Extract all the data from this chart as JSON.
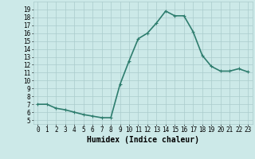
{
  "x": [
    0,
    1,
    2,
    3,
    4,
    5,
    6,
    7,
    8,
    9,
    10,
    11,
    12,
    13,
    14,
    15,
    16,
    17,
    18,
    19,
    20,
    21,
    22,
    23
  ],
  "y": [
    7.0,
    7.0,
    6.5,
    6.3,
    6.0,
    5.7,
    5.5,
    5.3,
    5.3,
    9.5,
    12.5,
    15.3,
    16.0,
    17.3,
    18.8,
    18.2,
    18.2,
    16.2,
    13.2,
    11.8,
    11.2,
    11.2,
    11.5,
    11.1
  ],
  "line_color": "#2e7d6e",
  "marker": "+",
  "marker_size": 3,
  "bg_color": "#cce9e8",
  "grid_color": "#aacccc",
  "xlabel": "Humidex (Indice chaleur)",
  "xlim": [
    -0.5,
    23.5
  ],
  "ylim": [
    4.5,
    20.0
  ],
  "xticks": [
    0,
    1,
    2,
    3,
    4,
    5,
    6,
    7,
    8,
    9,
    10,
    11,
    12,
    13,
    14,
    15,
    16,
    17,
    18,
    19,
    20,
    21,
    22,
    23
  ],
  "yticks": [
    5,
    6,
    7,
    8,
    9,
    10,
    11,
    12,
    13,
    14,
    15,
    16,
    17,
    18,
    19
  ],
  "tick_labelsize": 5.5,
  "xlabel_fontsize": 7,
  "line_width": 1.2
}
